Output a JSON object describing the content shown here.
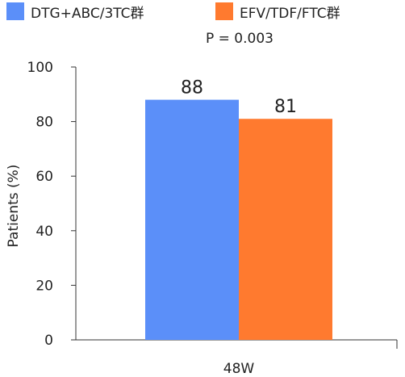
{
  "chart_data": {
    "type": "bar",
    "categories": [
      "48W"
    ],
    "series": [
      {
        "name": "DTG+ABC/3TC群",
        "values": [
          88
        ],
        "color": "#5B8FF9"
      },
      {
        "name": "EFV/TDF/FTC群",
        "values": [
          81
        ],
        "color": "#FF7A2F"
      }
    ],
    "data_labels": [
      "88",
      "81"
    ],
    "annotation": "P = 0.003",
    "ylabel": "Patients (%)",
    "xlabel": "",
    "ylim": [
      0,
      100
    ],
    "yticks": [
      0,
      20,
      40,
      60,
      80,
      100
    ],
    "legend_position": "top",
    "grid": false
  }
}
